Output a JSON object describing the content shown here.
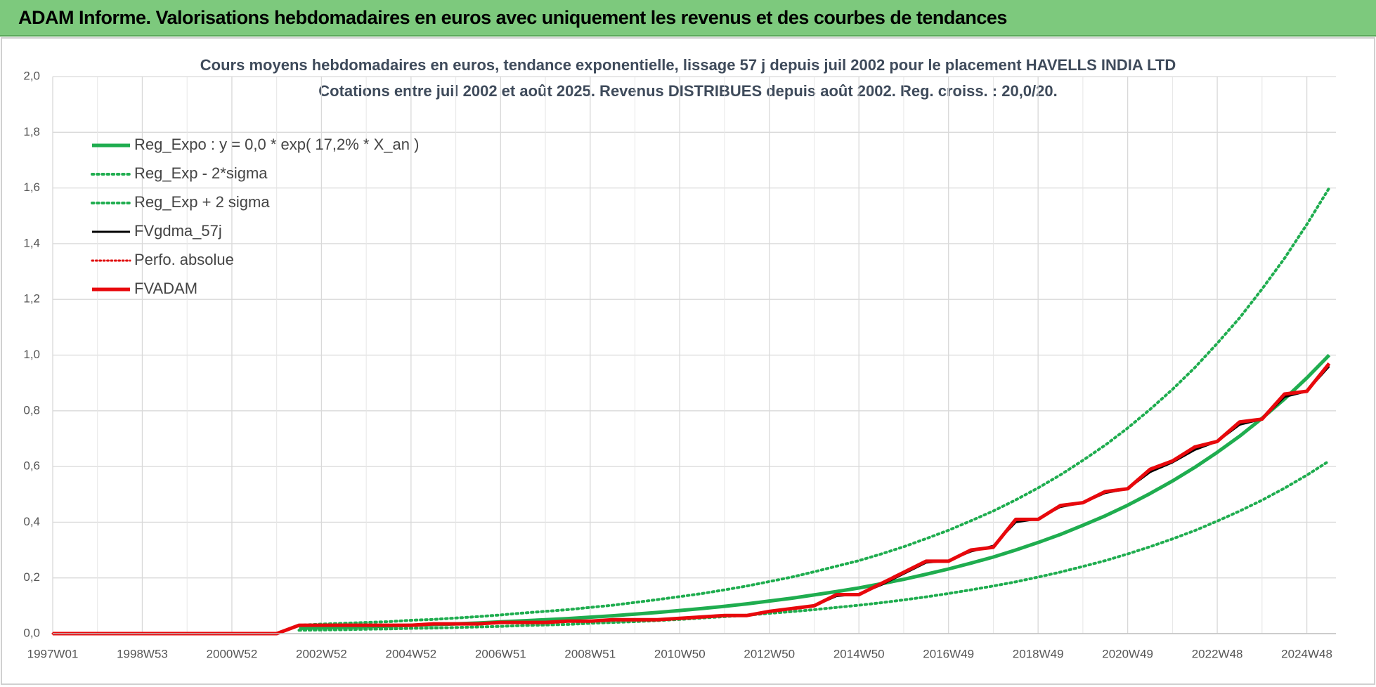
{
  "header": "ADAM Informe. Valorisations hebdomadaires en euros avec uniquement les revenus et des courbes de tendances",
  "chart_data": {
    "type": "line",
    "title": "Cours moyens hebdomadaires en euros, tendance exponentielle, lissage 57 j depuis juil 2002 pour le placement HAVELLS INDIA LTD",
    "subtitle": "Cotations entre juil 2002 et août 2025. Revenus DISTRIBUES depuis août 2002. Reg. croiss. : 20,0/20.",
    "categories": [
      "1997W01",
      null,
      null,
      null,
      "1998W53",
      null,
      null,
      null,
      "2000W52",
      null,
      null,
      null,
      "2002W52",
      null,
      null,
      null,
      "2004W52",
      null,
      null,
      null,
      "2006W51",
      null,
      null,
      null,
      "2008W51",
      null,
      null,
      null,
      "2010W50",
      null,
      null,
      null,
      "2012W50",
      null,
      null,
      null,
      "2014W50",
      null,
      null,
      null,
      "2016W49",
      null,
      null,
      null,
      "2018W49",
      null,
      null,
      null,
      "2020W49",
      null,
      null,
      null,
      "2022W48",
      null,
      null,
      null,
      "2024W48",
      null
    ],
    "ylim": [
      0,
      2
    ],
    "yticks": [
      {
        "value": 0,
        "label": "0,0"
      },
      {
        "value": 0.2,
        "label": "0,2"
      },
      {
        "value": 0.4,
        "label": "0,4"
      },
      {
        "value": 0.6,
        "label": "0,6"
      },
      {
        "value": 0.8,
        "label": "0,8"
      },
      {
        "value": 1,
        "label": "1,0"
      },
      {
        "value": 1.2,
        "label": "1,2"
      },
      {
        "value": 1.4,
        "label": "1,4"
      },
      {
        "value": 1.6,
        "label": "1,6"
      },
      {
        "value": 1.8,
        "label": "1,8"
      },
      {
        "value": 2,
        "label": "2,0"
      }
    ],
    "grid": true,
    "legend": "upper-left",
    "series": [
      {
        "name": "Reg_Expo : y = 0,0 * exp( 17,2% *  X_an )",
        "color": "#1fad4f",
        "style": "solid",
        "width": 5,
        "values": [
          null,
          null,
          null,
          null,
          null,
          null,
          null,
          null,
          null,
          null,
          null,
          0.019,
          0.021,
          0.023,
          0.025,
          0.027,
          0.03,
          0.032,
          0.035,
          0.038,
          0.042,
          0.046,
          0.05,
          0.054,
          0.059,
          0.064,
          0.07,
          0.076,
          0.083,
          0.09,
          0.098,
          0.107,
          0.117,
          0.127,
          0.139,
          0.151,
          0.164,
          0.179,
          0.195,
          0.213,
          0.232,
          0.253,
          0.275,
          0.3,
          0.327,
          0.356,
          0.389,
          0.423,
          0.461,
          0.503,
          0.548,
          0.597,
          0.651,
          0.709,
          0.773,
          0.842,
          0.918,
          1.0
        ]
      },
      {
        "name": "Reg_Exp - 2*sigma",
        "color": "#1fad4f",
        "style": "dotted",
        "width": 4,
        "values": [
          null,
          null,
          null,
          null,
          null,
          null,
          null,
          null,
          null,
          null,
          null,
          0.012,
          0.013,
          0.014,
          0.016,
          0.017,
          0.019,
          0.02,
          0.022,
          0.024,
          0.026,
          0.029,
          0.031,
          0.033,
          0.037,
          0.04,
          0.043,
          0.047,
          0.051,
          0.056,
          0.061,
          0.066,
          0.073,
          0.079,
          0.086,
          0.094,
          0.102,
          0.111,
          0.121,
          0.132,
          0.144,
          0.157,
          0.171,
          0.186,
          0.203,
          0.221,
          0.241,
          0.262,
          0.286,
          0.312,
          0.34,
          0.37,
          0.404,
          0.44,
          0.479,
          0.522,
          0.569,
          0.62
        ]
      },
      {
        "name": "Reg_Exp + 2 sigma",
        "color": "#1fad4f",
        "style": "dotted",
        "width": 4,
        "values": [
          null,
          null,
          null,
          null,
          null,
          null,
          null,
          null,
          null,
          null,
          null,
          0.03,
          0.034,
          0.037,
          0.04,
          0.043,
          0.048,
          0.051,
          0.056,
          0.061,
          0.067,
          0.074,
          0.08,
          0.086,
          0.094,
          0.102,
          0.112,
          0.122,
          0.133,
          0.144,
          0.157,
          0.171,
          0.187,
          0.203,
          0.222,
          0.242,
          0.262,
          0.286,
          0.312,
          0.341,
          0.371,
          0.405,
          0.44,
          0.48,
          0.523,
          0.57,
          0.622,
          0.677,
          0.738,
          0.805,
          0.877,
          0.955,
          1.042,
          1.134,
          1.237,
          1.347,
          1.469,
          1.6
        ]
      },
      {
        "name": "FVgdma_57j",
        "color": "#000000",
        "style": "solid",
        "width": 3,
        "values": [
          null,
          null,
          null,
          null,
          null,
          null,
          null,
          null,
          null,
          null,
          null,
          0.028,
          0.03,
          0.03,
          0.03,
          0.03,
          0.031,
          0.034,
          0.035,
          0.036,
          0.039,
          0.04,
          0.041,
          0.044,
          0.046,
          0.049,
          0.05,
          0.051,
          0.055,
          0.059,
          0.064,
          0.066,
          0.078,
          0.088,
          0.1,
          0.135,
          0.142,
          0.175,
          0.215,
          0.255,
          0.262,
          0.295,
          0.315,
          0.4,
          0.412,
          0.455,
          0.47,
          0.505,
          0.52,
          0.58,
          0.615,
          0.66,
          0.69,
          0.75,
          0.77,
          0.85,
          0.87,
          0.96
        ]
      },
      {
        "name": "Perfo. absolue",
        "color": "#e00000",
        "style": "dotted",
        "width": 3,
        "values": [
          0,
          0,
          0,
          0,
          0,
          0,
          0,
          0,
          0,
          0,
          0,
          0.03,
          0.03,
          0.03,
          0.03,
          0.03,
          0.03,
          0.035,
          0.035,
          0.035,
          0.04,
          0.04,
          0.04,
          0.045,
          0.045,
          0.05,
          0.05,
          0.05,
          0.055,
          0.06,
          0.065,
          0.065,
          0.08,
          0.09,
          0.1,
          0.14,
          0.14,
          0.18,
          0.22,
          0.26,
          0.26,
          0.3,
          0.31,
          0.41,
          0.41,
          0.46,
          0.47,
          0.51,
          0.52,
          0.59,
          0.62,
          0.67,
          0.69,
          0.76,
          0.77,
          0.86,
          0.87,
          0.97
        ]
      },
      {
        "name": "FVADAM",
        "color": "#e8080c",
        "style": "solid",
        "width": 5,
        "values": [
          0,
          0,
          0,
          0,
          0,
          0,
          0,
          0,
          0,
          0,
          0,
          0.03,
          0.03,
          0.03,
          0.03,
          0.03,
          0.03,
          0.035,
          0.035,
          0.035,
          0.04,
          0.04,
          0.04,
          0.045,
          0.045,
          0.05,
          0.05,
          0.05,
          0.055,
          0.06,
          0.065,
          0.065,
          0.08,
          0.09,
          0.1,
          0.14,
          0.14,
          0.18,
          0.22,
          0.26,
          0.26,
          0.3,
          0.31,
          0.41,
          0.41,
          0.46,
          0.47,
          0.51,
          0.52,
          0.59,
          0.62,
          0.67,
          0.69,
          0.76,
          0.77,
          0.86,
          0.87,
          0.97
        ]
      }
    ]
  }
}
